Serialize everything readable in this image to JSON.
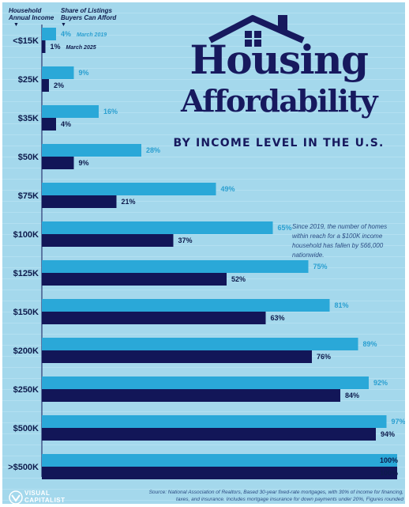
{
  "header": {
    "col1": "Household\nAnnual Income",
    "col2": "Share of Listings\nBuyers Can Afford"
  },
  "title": {
    "line1": "Housing",
    "line2": "Affordability",
    "subtitle": "BY INCOME LEVEL IN THE U.S."
  },
  "annotation": "Since 2019, the number of homes within reach for a $100K income household has fallen by 566,000 nationwide.",
  "source": "Source: National Association of Realtors, Based 30-year fixed-rate mortgages, with 30% of income for financing, taxes, and insurance. Includes mortgage insurance for down payments under 20%, Figures rounded",
  "logo": {
    "text": "VISUAL\nCAPITALIST",
    "icon": "visual-capitalist-logo-icon"
  },
  "colors": {
    "light": "#2aa8d8",
    "dark": "#121658",
    "text": "#0d1b4c",
    "light_label": "#2a9fd0"
  },
  "chart_data": {
    "type": "bar",
    "orientation": "horizontal",
    "categories": [
      "<$15K",
      "$25K",
      "$35K",
      "$50K",
      "$75K",
      "$100K",
      "$125K",
      "$150K",
      "$200K",
      "$250K",
      "$500K",
      ">$500K"
    ],
    "series": [
      {
        "name": "March 2019",
        "values": [
          4,
          9,
          16,
          28,
          49,
          65,
          75,
          81,
          89,
          92,
          97,
          100
        ]
      },
      {
        "name": "March 2025",
        "values": [
          1,
          2,
          4,
          9,
          21,
          37,
          52,
          63,
          76,
          84,
          94,
          100
        ]
      }
    ],
    "value_suffix": "%",
    "xlim": [
      0,
      100
    ],
    "xlabel": "Share of Listings Buyers Can Afford",
    "ylabel": "Household Annual Income"
  }
}
